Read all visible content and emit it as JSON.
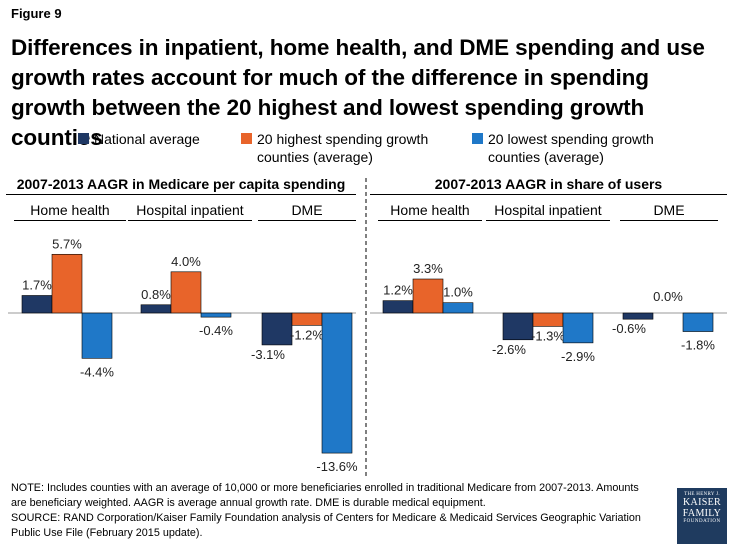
{
  "figure_label": "Figure 9",
  "title": "Differences in inpatient, home health, and DME spending and use growth rates account for much of the difference in spending growth between the 20 highest and lowest spending growth counties",
  "legend": [
    {
      "label": "National average",
      "color": "#1f3864"
    },
    {
      "label": "20 highest spending growth counties (average)",
      "color": "#e8642a"
    },
    {
      "label": "20 lowest spending growth counties (average)",
      "color": "#1f78c8"
    }
  ],
  "chart_data": [
    {
      "type": "bar",
      "title": "2007-2013 AAGR in Medicare per capita spending",
      "categories": [
        "Home health",
        "Hospital inpatient",
        "DME"
      ],
      "series": [
        {
          "name": "National average",
          "values": [
            1.7,
            0.8,
            -3.1
          ],
          "labels": [
            "1.7%",
            "0.8%",
            "-3.1%"
          ]
        },
        {
          "name": "20 highest spending growth counties (average)",
          "values": [
            5.7,
            4.0,
            -1.2
          ],
          "labels": [
            "5.7%",
            "4.0%",
            "-1.2%"
          ]
        },
        {
          "name": "20 lowest spending growth counties (average)",
          "values": [
            -4.4,
            -0.4,
            -13.6
          ],
          "labels": [
            "-4.4%",
            "-0.4%",
            "-13.6%"
          ]
        }
      ],
      "ylim": [
        -13.6,
        5.7
      ]
    },
    {
      "type": "bar",
      "title": "2007-2013 AAGR in share of users",
      "categories": [
        "Home health",
        "Hospital inpatient",
        "DME"
      ],
      "series": [
        {
          "name": "National average",
          "values": [
            1.2,
            -2.6,
            -0.6
          ],
          "labels": [
            "1.2%",
            "-2.6%",
            "-0.6%"
          ]
        },
        {
          "name": "20 highest spending growth counties (average)",
          "values": [
            3.3,
            -1.3,
            0.0
          ],
          "labels": [
            "3.3%",
            "-1.3%",
            "0.0%"
          ]
        },
        {
          "name": "20 lowest spending growth counties (average)",
          "values": [
            1.0,
            -2.9,
            -1.8
          ],
          "labels": [
            "1.0%",
            "-2.9%",
            "-1.8%"
          ]
        }
      ],
      "ylim": [
        -13.6,
        5.7
      ]
    }
  ],
  "note": "NOTE: Includes counties with an average of 10,000 or more beneficiaries enrolled in traditional Medicare from 2007-2013. Amounts are beneficiary weighted. AAGR is average annual growth rate. DME is durable medical equipment.",
  "source": "SOURCE: RAND Corporation/Kaiser Family Foundation analysis of Centers for Medicare & Medicaid Services Geographic Variation Public Use File (February 2015 update).",
  "logo": {
    "line1": "THE HENRY J.",
    "line2": "KAISER",
    "line3": "FAMILY",
    "line4": "FOUNDATION"
  }
}
